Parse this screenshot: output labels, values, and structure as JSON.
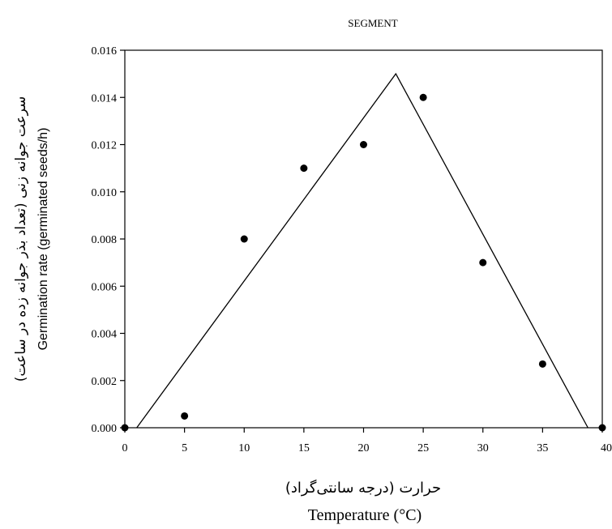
{
  "chart_data": {
    "type": "scatter",
    "title": "SEGMENT",
    "xlabel_fa": "حرارت (درجه سانتی‌گراد)",
    "xlabel": "Temperature (°C)",
    "ylabel_fa": "سرعت جوانه زنی (تعداد بذر جوانه زده در ساعت)",
    "ylabel": "Germination rate (germinated seeds/h)",
    "xlim": [
      0,
      40
    ],
    "ylim": [
      0,
      0.016
    ],
    "x_ticks": [
      "0",
      "5",
      "10",
      "15",
      "20",
      "25",
      "30",
      "35",
      "40"
    ],
    "y_ticks": [
      "0.000",
      "0.002",
      "0.004",
      "0.006",
      "0.008",
      "0.010",
      "0.012",
      "0.014",
      "0.016"
    ],
    "grid": false,
    "points": [
      {
        "x": 5,
        "y": 0.0005
      },
      {
        "x": 10,
        "y": 0.008
      },
      {
        "x": 15,
        "y": 0.011
      },
      {
        "x": 20,
        "y": 0.012
      },
      {
        "x": 25,
        "y": 0.014
      },
      {
        "x": 30,
        "y": 0.007
      },
      {
        "x": 35,
        "y": 0.0027
      }
    ],
    "model_line": [
      {
        "x": 1,
        "y": 0
      },
      {
        "x": 22.7,
        "y": 0.015
      },
      {
        "x": 38.8,
        "y": 0
      }
    ]
  }
}
